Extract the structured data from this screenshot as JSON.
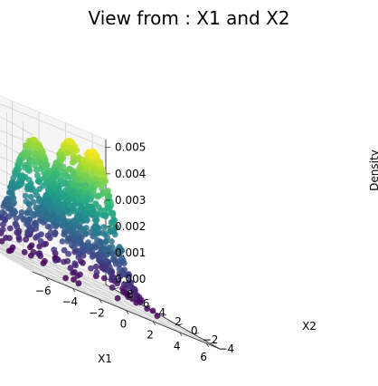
{
  "chart_data": {
    "type": "scatter",
    "subtype": "3d-scatter-density",
    "title": "View from : X1 and X2",
    "xlabel": "X1",
    "ylabel": "X2",
    "zlabel": "Density",
    "xlim": [
      -7,
      7
    ],
    "ylim": [
      -5.2,
      9
    ],
    "zlim": [
      -0.0002,
      0.0053
    ],
    "x_ticks": [
      -6,
      -4,
      -2,
      0,
      2,
      4,
      6
    ],
    "y_ticks": [
      -4,
      -2,
      0,
      2,
      4,
      6,
      8
    ],
    "z_ticks": [
      0.0,
      0.001,
      0.002,
      0.003,
      0.004,
      0.005
    ],
    "x_tick_labels": [
      "−6",
      "−4",
      "−2",
      "0",
      "2",
      "4",
      "6"
    ],
    "y_tick_labels": [
      "−4",
      "−2",
      "0",
      "2",
      "4",
      "6",
      "8"
    ],
    "z_tick_labels": [
      "0.000",
      "0.001",
      "0.002",
      "0.003",
      "0.004",
      "0.005"
    ],
    "colormap": "viridis",
    "grid": true,
    "components": [
      {
        "mean": [
          -2.6,
          2.0
        ],
        "sd": [
          1.2,
          1.5
        ],
        "weight": 0.31
      },
      {
        "mean": [
          0.2,
          -0.8
        ],
        "sd": [
          1.3,
          1.2
        ],
        "weight": 0.35
      },
      {
        "mean": [
          1.6,
          4.4
        ],
        "sd": [
          1.3,
          1.4
        ],
        "weight": 0.34
      }
    ],
    "density_max": 0.0051,
    "n_points": 1200
  }
}
